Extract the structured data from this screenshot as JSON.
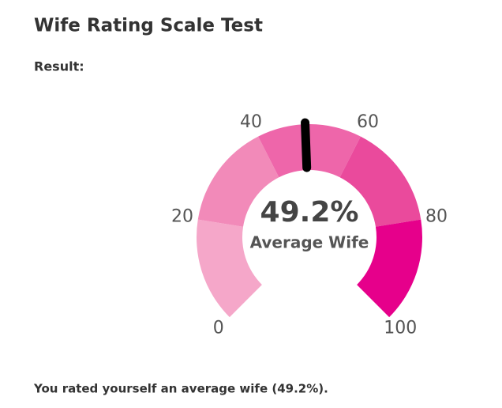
{
  "title": "Wife Rating Scale Test",
  "result_label": "Result:",
  "chart_data": {
    "type": "gauge",
    "ylim": [
      0,
      100
    ],
    "yticks": [
      0,
      20,
      40,
      60,
      80,
      100
    ],
    "colors": [
      "#f5a7c9",
      "#f28ab9",
      "#ee66aa",
      "#ea4a9c",
      "#e6008b"
    ],
    "values": [
      49.2
    ],
    "value_labels": [
      "49.2%"
    ],
    "label": "Average Wife",
    "needle_color": "#000000"
  },
  "summary": "You rated yourself an average wife (49.2%)."
}
